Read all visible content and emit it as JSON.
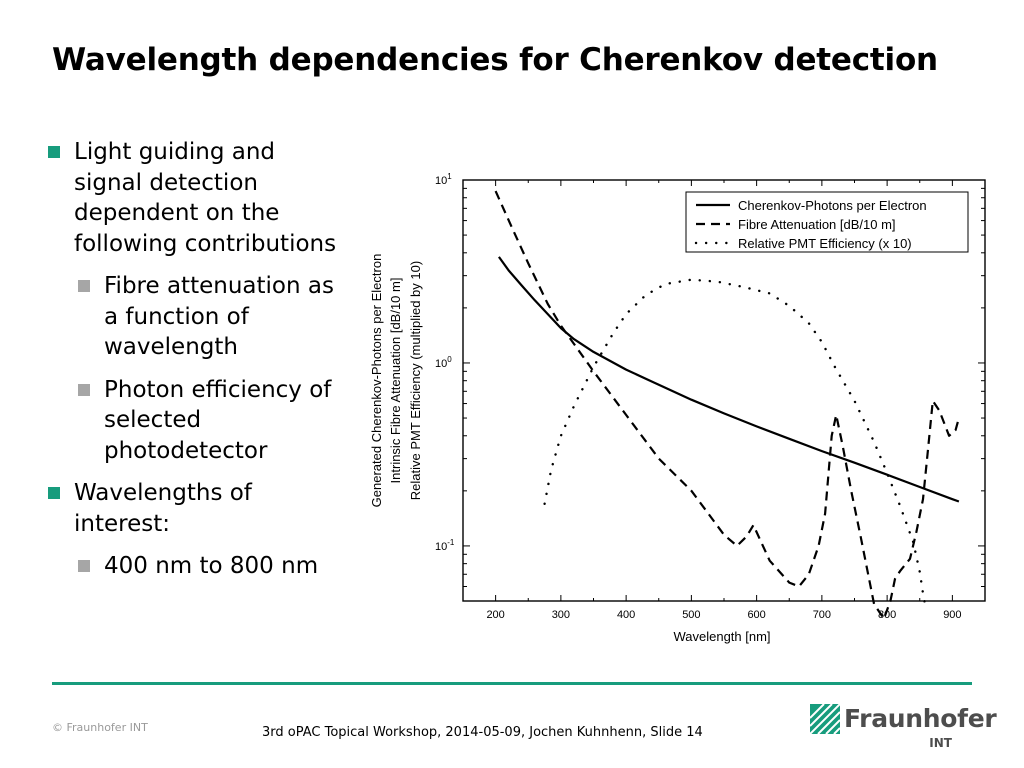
{
  "slide": {
    "title": "Wavelength dependencies for Cherenkov detection",
    "bullets": [
      {
        "text": "Light guiding and signal detection dependent on the following contributions"
      },
      {
        "text": "Fibre attenuation as a function of wavelength"
      },
      {
        "text": "Photon efficiency of selected photodetector"
      },
      {
        "text": "Wavelengths of interest:"
      },
      {
        "text": "400 nm to 800 nm"
      }
    ],
    "copyright": "© Fraunhofer INT",
    "footer": "3rd oPAC Topical Workshop, 2014-05-09, Jochen Kuhnhenn, Slide 14",
    "logo": {
      "name": "Fraunhofer",
      "sub": "INT"
    },
    "colors": {
      "accent": "#179c7d",
      "sub_bullet": "#a6a6a6",
      "logo_text": "#4d4d4d"
    }
  },
  "chart_data": {
    "type": "line",
    "title": "",
    "xlabel": "Wavelength [nm]",
    "ylabel": [
      "Generated Cherenkov-Photons per Electron",
      "Intrinsic Fibre Attenuation [dB/10 m]",
      "Relative PMT Efficiency (multiplied by 10)"
    ],
    "xlim": [
      150,
      950
    ],
    "ylim": [
      0.05,
      10
    ],
    "yscale": "log",
    "xticks": [
      200,
      300,
      400,
      500,
      600,
      700,
      800,
      900
    ],
    "yticks": [
      {
        "value": 10,
        "base": "10",
        "exp": "1"
      },
      {
        "value": 1,
        "base": "10",
        "exp": "0"
      },
      {
        "value": 0.1,
        "base": "10",
        "exp": "-1"
      }
    ],
    "legend_position": "top-right",
    "grid": false,
    "series": [
      {
        "name": "Cherenkov-Photons per Electron",
        "style": "solid",
        "x": [
          205,
          220,
          240,
          260,
          280,
          300,
          320,
          350,
          400,
          450,
          500,
          550,
          600,
          650,
          700,
          750,
          800,
          850,
          900,
          910
        ],
        "y": [
          3.8,
          3.2,
          2.65,
          2.2,
          1.85,
          1.55,
          1.35,
          1.15,
          0.92,
          0.76,
          0.63,
          0.53,
          0.45,
          0.385,
          0.33,
          0.285,
          0.245,
          0.21,
          0.18,
          0.175
        ]
      },
      {
        "name": "Fibre Attenuation [dB/10 m]",
        "style": "dashed",
        "x": [
          200,
          225,
          250,
          280,
          300,
          350,
          400,
          450,
          500,
          550,
          570,
          585,
          595,
          620,
          650,
          665,
          680,
          695,
          705,
          715,
          722,
          732,
          745,
          760,
          780,
          795,
          805,
          812,
          820,
          835,
          845,
          855,
          862,
          870,
          880,
          895,
          905,
          910
        ],
        "y": [
          8.7,
          5.5,
          3.5,
          2.1,
          1.6,
          0.9,
          0.52,
          0.3,
          0.2,
          0.115,
          0.1,
          0.113,
          0.13,
          0.083,
          0.063,
          0.06,
          0.07,
          0.1,
          0.15,
          0.4,
          0.52,
          0.35,
          0.2,
          0.11,
          0.048,
          0.04,
          0.05,
          0.066,
          0.073,
          0.085,
          0.12,
          0.18,
          0.32,
          0.62,
          0.55,
          0.4,
          0.43,
          0.5
        ]
      },
      {
        "name": "Relative PMT Efficiency (x 10)",
        "style": "dotted",
        "x": [
          275,
          285,
          300,
          320,
          350,
          380,
          400,
          430,
          460,
          500,
          540,
          580,
          620,
          650,
          680,
          700,
          720,
          750,
          780,
          800,
          820,
          840,
          850,
          855,
          858
        ],
        "y": [
          0.17,
          0.26,
          0.4,
          0.58,
          0.95,
          1.45,
          1.85,
          2.35,
          2.7,
          2.85,
          2.78,
          2.6,
          2.4,
          2.05,
          1.65,
          1.3,
          0.95,
          0.62,
          0.37,
          0.25,
          0.165,
          0.105,
          0.072,
          0.055,
          0.048
        ]
      }
    ]
  }
}
